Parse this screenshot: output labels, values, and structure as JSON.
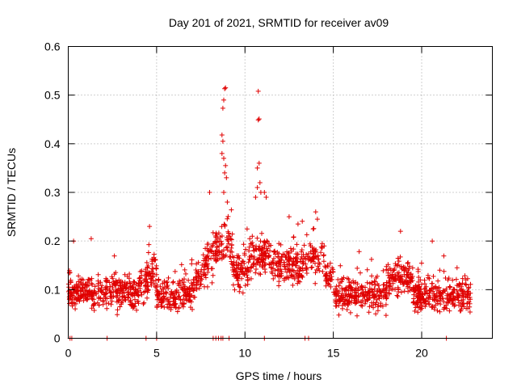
{
  "chart_data": {
    "type": "scatter",
    "title": "Day 201 of 2021, SRMTID for receiver av09",
    "xlabel": "GPS time / hours",
    "ylabel": "SRMTID / TECUs",
    "xlim": [
      0,
      24
    ],
    "ylim": [
      0,
      0.6
    ],
    "xticks": [
      0,
      5,
      10,
      15,
      20
    ],
    "xtick_labels": [
      "0",
      "5",
      "10",
      "15",
      "20"
    ],
    "yticks": [
      0,
      0.1,
      0.2,
      0.3,
      0.4,
      0.5,
      0.6
    ],
    "ytick_labels": [
      "0",
      "0.1",
      "0.2",
      "0.3",
      "0.4",
      "0.5",
      "0.6"
    ],
    "grid": true,
    "series": [
      {
        "name": "SRMTID",
        "color": "#e00000",
        "marker": "plus",
        "points": [
          [
            8.9,
            0.515
          ],
          [
            8.85,
            0.513
          ],
          [
            8.8,
            0.49
          ],
          [
            8.75,
            0.473
          ],
          [
            8.7,
            0.418
          ],
          [
            8.75,
            0.405
          ],
          [
            8.8,
            0.37
          ],
          [
            8.9,
            0.355
          ],
          [
            8.85,
            0.34
          ],
          [
            8.95,
            0.33
          ],
          [
            8.7,
            0.38
          ],
          [
            8.8,
            0.3
          ],
          [
            10.75,
            0.508
          ],
          [
            10.8,
            0.451
          ],
          [
            10.75,
            0.449
          ],
          [
            10.8,
            0.36
          ],
          [
            10.7,
            0.35
          ],
          [
            10.85,
            0.32
          ],
          [
            10.7,
            0.31
          ],
          [
            10.9,
            0.3
          ],
          [
            10.6,
            0.29
          ],
          [
            8.0,
            0.3
          ],
          [
            9.0,
            0.28
          ],
          [
            11.1,
            0.3
          ],
          [
            11.2,
            0.29
          ],
          [
            12.5,
            0.25
          ],
          [
            14.0,
            0.26
          ],
          [
            14.1,
            0.245
          ],
          [
            4.6,
            0.23
          ],
          [
            0.3,
            0.2
          ],
          [
            1.3,
            0.205
          ],
          [
            13.0,
            0.235
          ],
          [
            18.8,
            0.22
          ],
          [
            20.6,
            0.2
          ],
          [
            22.0,
            0.145
          ],
          [
            22.5,
            0.12
          ]
        ],
        "zero_points": [
          0.1,
          0.2,
          2.2,
          4.4,
          5.0,
          8.2,
          8.35,
          8.5,
          8.65,
          8.75,
          9.1,
          11.1,
          13.4,
          13.6,
          21.4
        ]
      }
    ]
  }
}
